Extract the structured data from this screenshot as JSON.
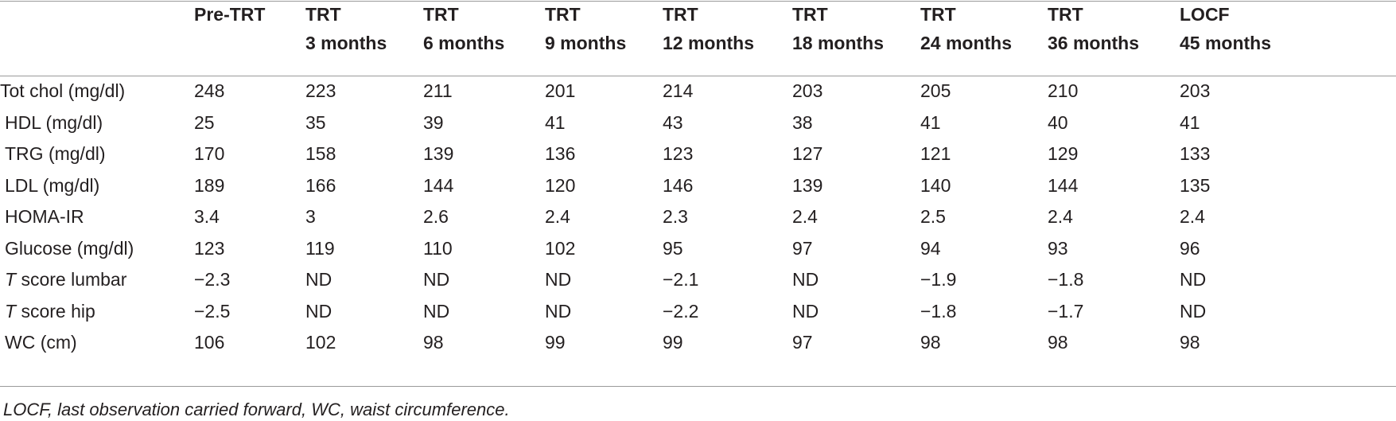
{
  "table": {
    "columns": [
      {
        "line1": "",
        "line2": ""
      },
      {
        "line1": "Pre-TRT",
        "line2": ""
      },
      {
        "line1": "TRT",
        "line2": "3 months"
      },
      {
        "line1": "TRT",
        "line2": "6 months"
      },
      {
        "line1": "TRT",
        "line2": "9 months"
      },
      {
        "line1": "TRT",
        "line2": "12 months"
      },
      {
        "line1": "TRT",
        "line2": "18 months"
      },
      {
        "line1": "TRT",
        "line2": "24 months"
      },
      {
        "line1": "TRT",
        "line2": "36 months"
      },
      {
        "line1": "LOCF",
        "line2": "45 months"
      }
    ],
    "rows": [
      {
        "label_prefix": "",
        "label": "Tot chol (mg/dl)",
        "values": [
          "248",
          "223",
          "211",
          "201",
          "214",
          "203",
          "205",
          "210",
          "203"
        ]
      },
      {
        "label_prefix": "",
        "label": "HDL (mg/dl)",
        "values": [
          "25",
          "35",
          "39",
          "41",
          "43",
          "38",
          "41",
          "40",
          "41"
        ]
      },
      {
        "label_prefix": "",
        "label": "TRG (mg/dl)",
        "values": [
          "170",
          "158",
          "139",
          "136",
          "123",
          "127",
          "121",
          "129",
          "133"
        ]
      },
      {
        "label_prefix": "",
        "label": "LDL (mg/dl)",
        "values": [
          "189",
          "166",
          "144",
          "120",
          "146",
          "139",
          "140",
          "144",
          "135"
        ]
      },
      {
        "label_prefix": "",
        "label": "HOMA-IR",
        "values": [
          "3.4",
          "3",
          "2.6",
          "2.4",
          "2.3",
          "2.4",
          "2.5",
          "2.4",
          "2.4"
        ]
      },
      {
        "label_prefix": "",
        "label": "Glucose (mg/dl)",
        "values": [
          "123",
          "119",
          "110",
          "102",
          "95",
          "97",
          "94",
          "93",
          "96"
        ]
      },
      {
        "label_prefix": "T",
        "label": " score lumbar",
        "values": [
          "−2.3",
          "ND",
          "ND",
          "ND",
          "−2.1",
          "ND",
          "−1.9",
          "−1.8",
          "ND"
        ]
      },
      {
        "label_prefix": "T",
        "label": " score hip",
        "values": [
          "−2.5",
          "ND",
          "ND",
          "ND",
          "−2.2",
          "ND",
          "−1.8",
          "−1.7",
          "ND"
        ]
      },
      {
        "label_prefix": "",
        "label": "WC (cm)",
        "values": [
          "106",
          "102",
          "98",
          "99",
          "99",
          "97",
          "98",
          "98",
          "98"
        ]
      }
    ]
  },
  "footnote": "LOCF, last observation carried forward, WC, waist circumference."
}
